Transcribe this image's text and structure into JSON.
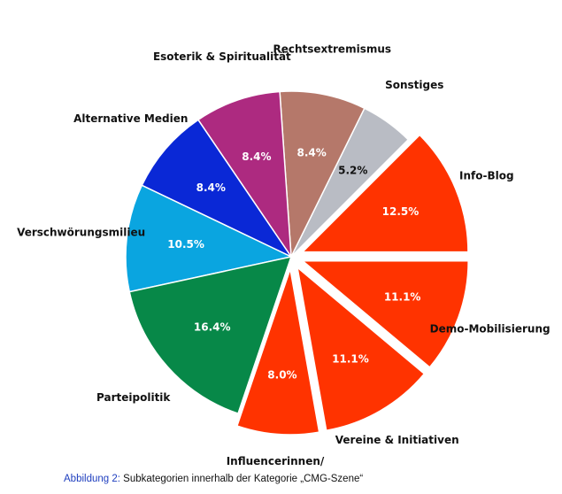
{
  "chart_data": {
    "type": "pie",
    "title": "",
    "categories": [
      "Info-Blog",
      "Sonstiges",
      "Rechtsextremismus",
      "Esoterik & Spiritualität",
      "Alternative Medien",
      "Verschwörungsmilieu",
      "Parteipolitik",
      "Influencerinnen/ Influencer",
      "Vereine & Initiativen",
      "Demo-Mobilisierung"
    ],
    "values": [
      12.5,
      5.2,
      8.4,
      8.4,
      8.4,
      10.5,
      16.4,
      8.0,
      11.1,
      11.1
    ],
    "labels": [
      "12.5%",
      "5.2%",
      "8.4%",
      "8.4%",
      "8.4%",
      "10.5%",
      "16.4%",
      "8.0%",
      "11.1%",
      "11.1%"
    ],
    "colors": [
      "#ff3300",
      "#b9bcc4",
      "#b5786a",
      "#ad2a80",
      "#0a28d6",
      "#0aa5e0",
      "#078848",
      "#ff3300",
      "#ff3300",
      "#ff3300"
    ],
    "exploded": [
      true,
      false,
      false,
      false,
      false,
      false,
      false,
      true,
      true,
      true
    ],
    "legend": "none"
  },
  "caption": {
    "label": "Abbildung 2:",
    "text": " Subkategorien innerhalb der Kategorie „CMG-Szene“"
  }
}
